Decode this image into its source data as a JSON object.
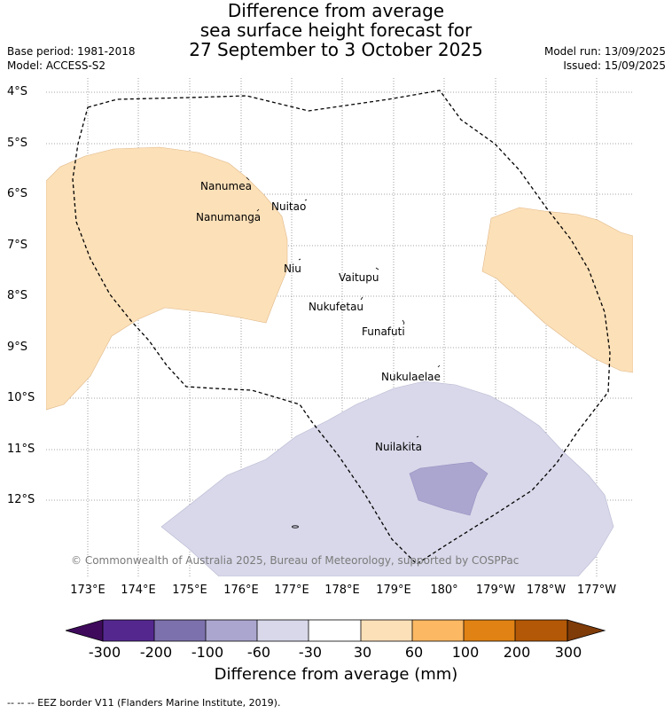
{
  "header": {
    "title_lines": [
      "Difference from average",
      "sea surface height forecast for",
      "27 September to 3 October 2025"
    ],
    "base_period": "Base period: 1981-2018",
    "model": "Model: ACCESS-S2",
    "model_run": "Model run: 13/09/2025",
    "issued": "Issued: 15/09/2025"
  },
  "map": {
    "lat_labels": [
      "4°S",
      "5°S",
      "6°S",
      "7°S",
      "8°S",
      "9°S",
      "10°S",
      "11°S",
      "12°S"
    ],
    "lon_labels": [
      "173°E",
      "174°E",
      "175°E",
      "176°E",
      "177°E",
      "178°E",
      "179°E",
      "180°",
      "179°W",
      "178°W",
      "177°W"
    ],
    "places": [
      "Nanumea",
      "Nuitao",
      "Nanumanga",
      "Niu",
      "Vaitupu",
      "Nukufetau",
      "Funafuti",
      "Nukulaelae",
      "Nuilakita"
    ],
    "copyright": "© Commonwealth of Australia 2025, Bureau of Meteorology, supported by COSPPac",
    "colors": {
      "positive_30_60": "#fce0b8",
      "negative_30_60": "#d8d8ea",
      "negative_60_100": "#aba6cf"
    }
  },
  "colorbar": {
    "ticks": [
      "-300",
      "-200",
      "-100",
      "-60",
      "-30",
      "30",
      "60",
      "100",
      "200",
      "300"
    ],
    "label": "Difference from average (mm)",
    "colors": [
      "#3f0a5c",
      "#54278f",
      "#7d71ad",
      "#aba6cf",
      "#d8d8ea",
      "#ffffff",
      "#fce0b8",
      "#fdb863",
      "#e08214",
      "#b35806",
      "#7f3b08"
    ]
  },
  "footer": {
    "legend": "--  --  -- EEZ border V11 (Flanders Marine Institute, 2019)."
  }
}
